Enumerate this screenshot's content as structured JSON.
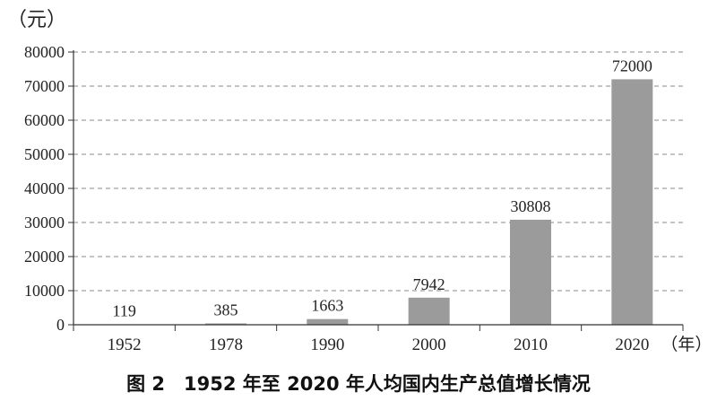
{
  "chart_data": {
    "type": "bar",
    "ylabel": "（元）",
    "xlabel": "（年）",
    "categories": [
      "1952",
      "1978",
      "1990",
      "2000",
      "2010",
      "2020"
    ],
    "values": [
      119,
      385,
      1663,
      7942,
      30808,
      72000
    ],
    "data_labels": [
      "119",
      "385",
      "1663",
      "7942",
      "30808",
      "72000"
    ],
    "ylim": [
      0,
      80000
    ],
    "yticks": [
      0,
      10000,
      20000,
      30000,
      40000,
      50000,
      60000,
      70000,
      80000
    ],
    "ytick_labels": [
      "0",
      "10000",
      "20000",
      "30000",
      "40000",
      "50000",
      "60000",
      "70000",
      "80000"
    ],
    "grid": "horizontal-dashed",
    "bar_color": "#9b9b9b",
    "caption": "图 2　1952 年至 2020 年人均国内生产总值增长情况"
  }
}
